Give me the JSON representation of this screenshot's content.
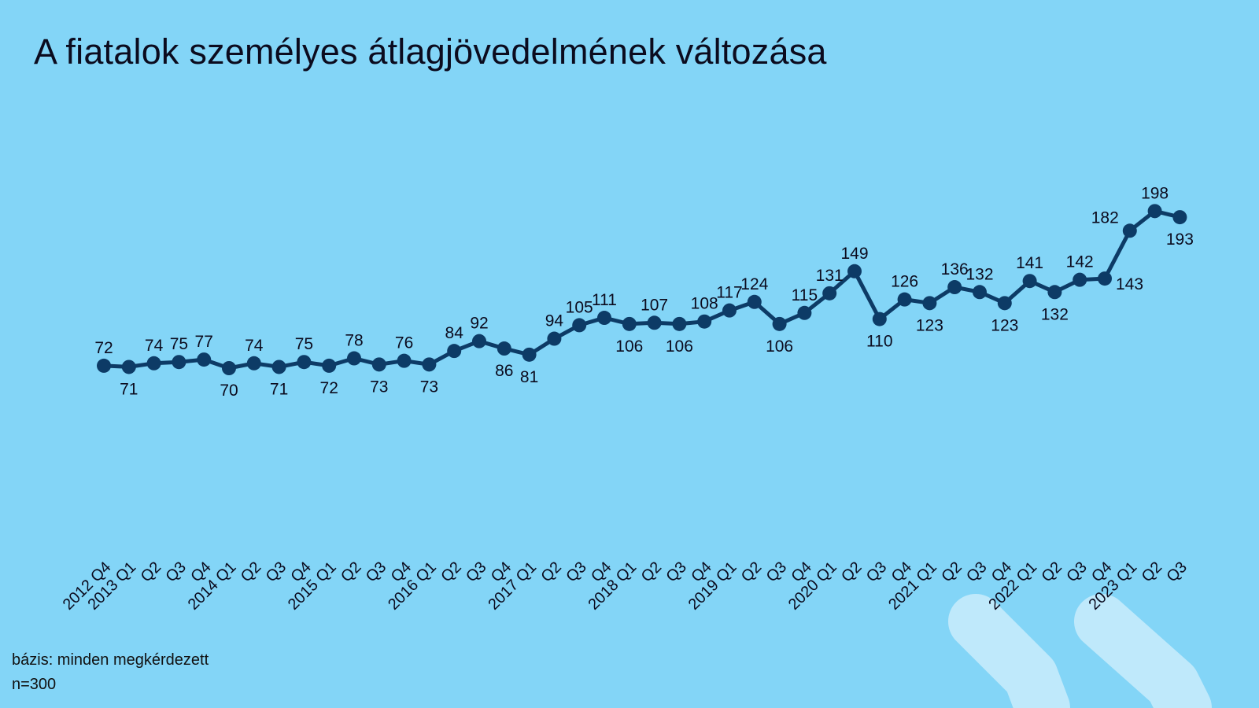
{
  "title": "A fiatalok személyes átlagjövedelmének változása",
  "footnote": {
    "base": "bázis: minden megkérdezett",
    "n": "n=300"
  },
  "colors": {
    "background": "#83d5f7",
    "line": "#0d3b66",
    "text": "#0b0b1e",
    "decoration": "#bfe9fb"
  },
  "chart_data": {
    "type": "line",
    "title": "A fiatalok személyes átlagjövedelmének változása",
    "xlabel": "",
    "ylabel": "",
    "grid": false,
    "legend": "none",
    "categories": [
      "2012 Q4",
      "2013 Q1",
      "Q2",
      "Q3",
      "Q4",
      "2014 Q1",
      "Q2",
      "Q3",
      "Q4",
      "2015 Q1",
      "Q2",
      "Q3",
      "Q4",
      "2016 Q1",
      "Q2",
      "Q3",
      "Q4",
      "2017 Q1",
      "Q2",
      "Q3",
      "Q4",
      "2018 Q1",
      "Q2",
      "Q3",
      "Q4",
      "2019 Q1",
      "Q2",
      "Q3",
      "Q4",
      "2020 Q1",
      "Q2",
      "Q3",
      "Q4",
      "2021 Q1",
      "Q2",
      "Q3",
      "Q4",
      "2022 Q1",
      "Q2",
      "Q3",
      "Q4",
      "2023 Q1",
      "Q2",
      "Q3"
    ],
    "values": [
      72,
      71,
      74,
      75,
      77,
      70,
      74,
      71,
      75,
      72,
      78,
      73,
      76,
      73,
      84,
      92,
      86,
      81,
      94,
      105,
      111,
      106,
      107,
      106,
      108,
      117,
      124,
      106,
      115,
      131,
      149,
      110,
      126,
      123,
      136,
      132,
      123,
      141,
      132,
      142,
      143,
      182,
      198,
      193
    ],
    "label_positions": [
      "above",
      "below",
      "above",
      "above",
      "above",
      "below",
      "above",
      "below",
      "above",
      "below",
      "above",
      "below",
      "above",
      "below",
      "above",
      "above",
      "below",
      "below",
      "above",
      "above",
      "above",
      "below",
      "above",
      "below",
      "above",
      "above",
      "above",
      "below",
      "above",
      "above",
      "above",
      "below",
      "above",
      "below",
      "above",
      "above",
      "below",
      "above",
      "below",
      "above",
      "right",
      "left",
      "above",
      "below"
    ]
  }
}
